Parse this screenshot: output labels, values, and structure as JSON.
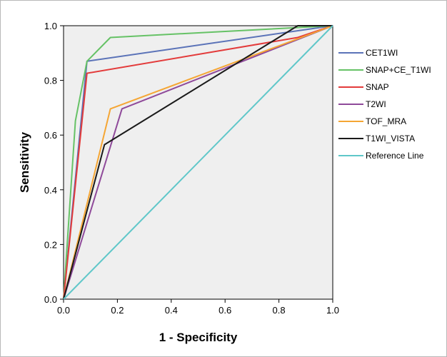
{
  "chart_data": {
    "type": "line",
    "title": "",
    "xlabel": "1 - Specificity",
    "ylabel": "Sensitivity",
    "xlim": [
      0,
      1
    ],
    "ylim": [
      0,
      1
    ],
    "xticks": [
      "0.0",
      "0.2",
      "0.4",
      "0.6",
      "0.8",
      "1.0"
    ],
    "yticks": [
      "0.0",
      "0.2",
      "0.4",
      "0.6",
      "0.8",
      "1.0"
    ],
    "grid": false,
    "legend_position": "right",
    "series": [
      {
        "name": "CET1WI",
        "color": "#5b73b8",
        "x": [
          0,
          0.087,
          1
        ],
        "y": [
          0,
          0.87,
          1
        ]
      },
      {
        "name": "SNAP+CE_T1WI",
        "color": "#66c266",
        "x": [
          0,
          0.044,
          0.087,
          0.174,
          1
        ],
        "y": [
          0,
          0.652,
          0.87,
          0.957,
          1
        ]
      },
      {
        "name": "SNAP",
        "color": "#e33b3b",
        "x": [
          0,
          0.087,
          0.87,
          1
        ],
        "y": [
          0,
          0.826,
          0.957,
          1
        ]
      },
      {
        "name": "T2WI",
        "color": "#8f4a9a",
        "x": [
          0,
          0.217,
          1
        ],
        "y": [
          0,
          0.696,
          1
        ]
      },
      {
        "name": "TOF_MRA",
        "color": "#f5a634",
        "x": [
          0,
          0.174,
          1
        ],
        "y": [
          0,
          0.696,
          1
        ]
      },
      {
        "name": "T1WI_VISTA",
        "color": "#1a1a1a",
        "x": [
          0,
          0.152,
          0.87,
          1
        ],
        "y": [
          0,
          0.565,
          1,
          1
        ]
      },
      {
        "name": "Reference Line",
        "color": "#5fc7c9",
        "x": [
          0,
          1
        ],
        "y": [
          0,
          1
        ]
      }
    ]
  }
}
